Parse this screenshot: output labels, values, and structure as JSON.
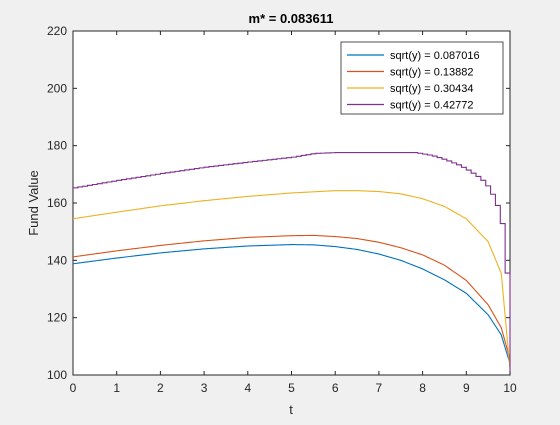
{
  "chart_data": {
    "type": "line",
    "title": "m* = 0.083611",
    "xlabel": "t",
    "ylabel": "Fund Value",
    "xlim": [
      0,
      10
    ],
    "ylim": [
      100,
      220
    ],
    "xticks": [
      0,
      1,
      2,
      3,
      4,
      5,
      6,
      7,
      8,
      9,
      10
    ],
    "yticks": [
      100,
      120,
      140,
      160,
      180,
      200,
      220
    ],
    "grid": false,
    "legend_position": "top-right",
    "series": [
      {
        "name": "sqrt(y) = 0.087016",
        "color": "#0072BD",
        "x": [
          0,
          1,
          2,
          3,
          4,
          5,
          5.5,
          6,
          6.5,
          7,
          7.5,
          8,
          8.5,
          9,
          9.5,
          9.8,
          10
        ],
        "y": [
          138.8,
          140.8,
          142.6,
          144.0,
          145.0,
          145.5,
          145.4,
          144.8,
          143.8,
          142.2,
          140.0,
          137.0,
          133.2,
          128.5,
          121.0,
          114.0,
          104.0
        ]
      },
      {
        "name": "sqrt(y) = 0.13882",
        "color": "#D95319",
        "x": [
          0,
          1,
          2,
          3,
          4,
          5,
          5.5,
          6,
          6.5,
          7,
          7.5,
          8,
          8.5,
          9,
          9.5,
          9.8,
          10
        ],
        "y": [
          141.2,
          143.3,
          145.2,
          146.8,
          148.0,
          148.6,
          148.7,
          148.3,
          147.6,
          146.3,
          144.4,
          141.9,
          138.3,
          133.0,
          124.5,
          116.5,
          105.5
        ]
      },
      {
        "name": "sqrt(y) = 0.30434",
        "color": "#EDB120",
        "x": [
          0,
          1,
          2,
          3,
          4,
          5,
          6,
          6.5,
          7,
          7.5,
          8,
          8.5,
          9,
          9.5,
          9.8,
          10
        ],
        "y": [
          154.5,
          156.8,
          159.0,
          160.8,
          162.3,
          163.5,
          164.3,
          164.3,
          164.0,
          163.2,
          161.5,
          158.8,
          154.5,
          146.5,
          135.5,
          102.0
        ]
      },
      {
        "name": "sqrt(y) = 0.42772",
        "color": "#7E2F8E",
        "step": true,
        "x": [
          0,
          1,
          2,
          3,
          4,
          5,
          5.5,
          6,
          7,
          7.5,
          7.8,
          8.2,
          8.5,
          8.8,
          9,
          9.3,
          9.5,
          9.7,
          9.85,
          10
        ],
        "y": [
          165.3,
          167.9,
          170.3,
          172.5,
          174.3,
          176.0,
          177.3,
          177.6,
          177.6,
          177.6,
          177.6,
          176.5,
          175.0,
          173.2,
          171.5,
          168.5,
          165.0,
          158.0,
          148.0,
          100.0
        ]
      }
    ]
  }
}
